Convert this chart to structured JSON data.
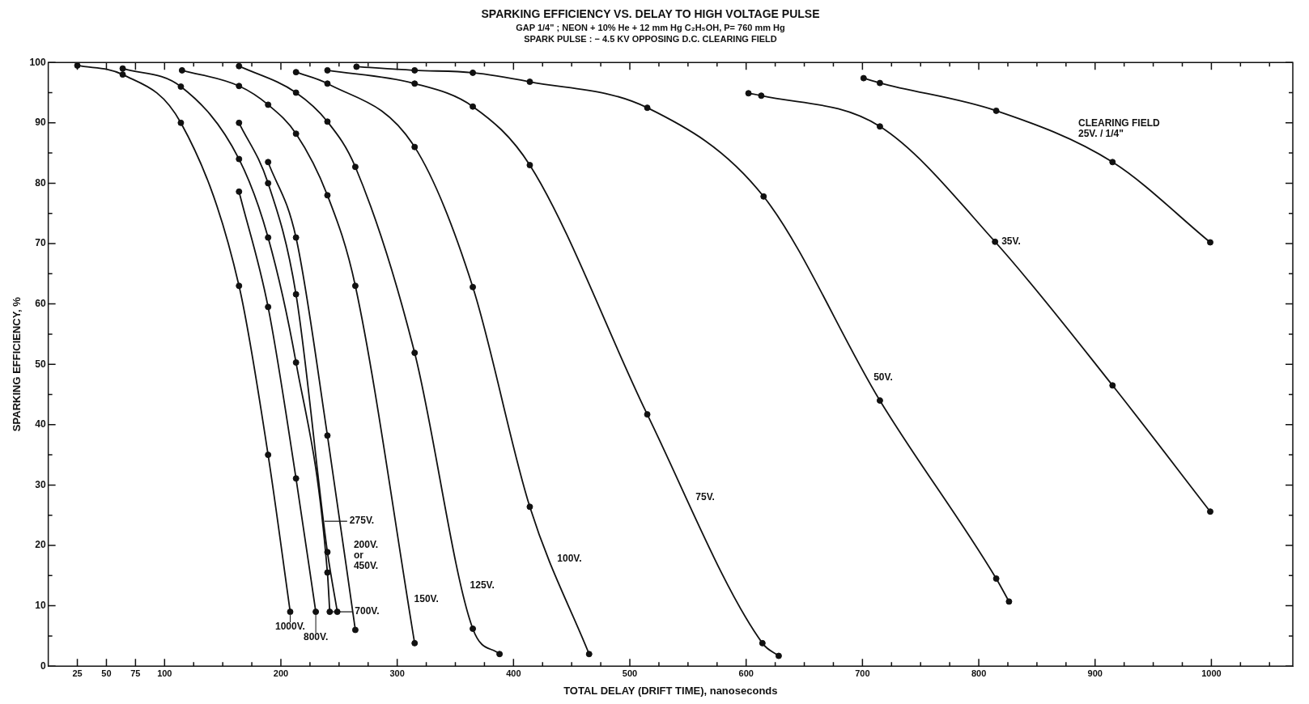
{
  "chart_data": {
    "type": "line",
    "title": "SPARKING EFFICIENCY VS. DELAY TO HIGH VOLTAGE PULSE",
    "subtitle": "GAP 1/4\" ; NEON + 10% He + 12 mm Hg C₂H₅OH, P= 760 mm Hg\nSPARK PULSE : − 4.5 KV OPPOSING D.C. CLEARING FIELD",
    "xlabel": "TOTAL DELAY (DRIFT TIME), nanoseconds",
    "ylabel": "SPARKING EFFICIENCY, %",
    "xlim": [
      0,
      1070
    ],
    "ylim": [
      0,
      100
    ],
    "xticks": [
      25,
      50,
      75,
      100,
      {
        "value": 125,
        "label": null
      },
      {
        "value": 150,
        "label": null
      },
      {
        "value": 175,
        "label": null
      },
      200,
      {
        "value": 225,
        "label": null
      },
      {
        "value": 250,
        "label": null
      },
      {
        "value": 275,
        "label": null
      },
      300,
      {
        "value": 325,
        "label": null
      },
      {
        "value": 350,
        "label": null
      },
      {
        "value": 375,
        "label": null
      },
      400,
      {
        "value": 425,
        "label": null
      },
      {
        "value": 450,
        "label": null
      },
      {
        "value": 475,
        "label": null
      },
      500,
      {
        "value": 525,
        "label": null
      },
      {
        "value": 550,
        "label": null
      },
      {
        "value": 575,
        "label": null
      },
      600,
      {
        "value": 625,
        "label": null
      },
      {
        "value": 650,
        "label": null
      },
      {
        "value": 675,
        "label": null
      },
      700,
      {
        "value": 725,
        "label": null
      },
      {
        "value": 750,
        "label": null
      },
      {
        "value": 775,
        "label": null
      },
      800,
      {
        "value": 825,
        "label": null
      },
      {
        "value": 850,
        "label": null
      },
      {
        "value": 875,
        "label": null
      },
      900,
      {
        "value": 925,
        "label": null
      },
      {
        "value": 950,
        "label": null
      },
      {
        "value": 975,
        "label": null
      },
      1000,
      {
        "value": 1025,
        "label": null
      },
      {
        "value": 1050,
        "label": null
      }
    ],
    "yticks": [
      0,
      {
        "value": 5,
        "label": null
      },
      10,
      {
        "value": 15,
        "label": null
      },
      20,
      {
        "value": 25,
        "label": null
      },
      30,
      {
        "value": 35,
        "label": null
      },
      40,
      {
        "value": 45,
        "label": null
      },
      50,
      {
        "value": 55,
        "label": null
      },
      60,
      {
        "value": 65,
        "label": null
      },
      70,
      {
        "value": 75,
        "label": null
      },
      80,
      {
        "value": 85,
        "label": null
      },
      90,
      {
        "value": 95,
        "label": null
      },
      100
    ],
    "marker": "circle",
    "line_style": "solid",
    "grid": false,
    "series": [
      {
        "color": "#111111",
        "x": [
          25,
          64,
          114,
          164,
          189,
          208
        ],
        "values": [
          99.5,
          98,
          90,
          63,
          35,
          9
        ]
      },
      {
        "color": "#111111",
        "x": [
          164,
          189,
          213,
          230
        ],
        "values": [
          78.6,
          59.5,
          31.1,
          9
        ]
      },
      {
        "color": "#111111",
        "x": [
          64,
          114,
          164,
          189,
          213,
          240,
          242
        ],
        "values": [
          99,
          96,
          84,
          71,
          50.3,
          15.5,
          9
        ]
      },
      {
        "color": "#111111",
        "x": [
          164,
          189,
          213,
          240,
          248.5
        ],
        "values": [
          90,
          80,
          61.6,
          18.9,
          9
        ]
      },
      {
        "color": "#111111",
        "x": [
          189,
          213,
          240,
          264
        ],
        "values": [
          83.5,
          71,
          38.2,
          6
        ]
      },
      {
        "color": "#111111",
        "x": [
          115,
          164,
          189,
          213,
          240,
          264,
          315
        ],
        "values": [
          98.7,
          96.1,
          93,
          88.2,
          78,
          63,
          3.8
        ]
      },
      {
        "color": "#111111",
        "x": [
          164,
          213,
          240,
          264,
          315,
          365,
          388
        ],
        "values": [
          99.4,
          95,
          90.2,
          82.7,
          51.9,
          6.2,
          2
        ]
      },
      {
        "color": "#111111",
        "x": [
          213,
          240,
          315,
          365,
          414,
          465
        ],
        "values": [
          98.4,
          96.5,
          86,
          62.8,
          26.4,
          2
        ]
      },
      {
        "color": "#111111",
        "x": [
          240,
          315,
          365,
          414,
          515,
          614,
          628
        ],
        "values": [
          98.7,
          96.5,
          92.7,
          83,
          41.7,
          3.8,
          1.7
        ]
      },
      {
        "color": "#111111",
        "x": [
          265,
          315,
          365,
          414,
          515,
          615,
          715,
          815,
          826
        ],
        "values": [
          99.3,
          98.7,
          98.3,
          96.8,
          92.5,
          77.8,
          44,
          14.5,
          10.7
        ]
      },
      {
        "color": "#111111",
        "x": [
          602,
          613,
          715,
          814,
          915,
          999
        ],
        "values": [
          94.9,
          94.5,
          89.4,
          70.3,
          46.5,
          25.6
        ]
      },
      {
        "color": "#111111",
        "x": [
          701,
          715,
          815,
          915,
          999
        ],
        "values": [
          97.4,
          96.6,
          92,
          83.5,
          70.2
        ]
      }
    ],
    "annotations": [
      {
        "text": "1000V.",
        "x": 208,
        "y": 9
      },
      {
        "text": "800V.",
        "x": 230,
        "y": 9
      },
      {
        "text": "700V.",
        "x": 242,
        "y": 9
      },
      {
        "text": "275V.",
        "x": 237.5,
        "y": 24
      },
      {
        "text": "200V.\nor\n450V.",
        "x": 257,
        "y": 15
      },
      {
        "text": "150V.",
        "x": 309,
        "y": 11
      },
      {
        "text": "125V.",
        "x": 357,
        "y": 13.4
      },
      {
        "text": "100V.",
        "x": 432,
        "y": 17.8
      },
      {
        "text": "75V.",
        "x": 551,
        "y": 28
      },
      {
        "text": "50V.",
        "x": 704,
        "y": 47.8
      },
      {
        "text": "35V.",
        "x": 814,
        "y": 70.3
      },
      {
        "text": "CLEARING FIELD\n25V. / 1/4\"",
        "x": 880,
        "y": 86.5
      }
    ]
  }
}
